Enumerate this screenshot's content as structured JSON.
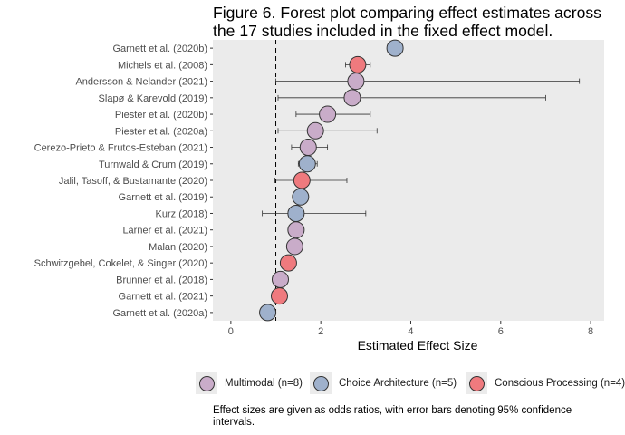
{
  "chart_data": {
    "type": "forest",
    "title": "Figure 6. Forest plot comparing effect estimates across\nthe 17 studies included in the fixed effect model.",
    "xlabel": "Estimated Effect Size",
    "xlim": [
      -0.4,
      8.3
    ],
    "x_ticks": [
      "0",
      "2",
      "4",
      "6",
      "8"
    ],
    "reference_line": 1,
    "grid": false,
    "legend_position": "bottom",
    "colors": {
      "Multimodal": "#c9acc9",
      "Choice Architecture": "#9fb1cc",
      "Conscious Processing": "#ef7a7e"
    },
    "legend": [
      {
        "group": "Multimodal",
        "label": "Multimodal (n=8)"
      },
      {
        "group": "Choice Architecture",
        "label": "Choice Architecture (n=5)"
      },
      {
        "group": "Conscious Processing",
        "label": "Conscious Processing (n=4)"
      }
    ],
    "studies": [
      {
        "name": "Garnett et al. (2020b)",
        "estimate": 3.65,
        "lower": 3.6,
        "upper": 3.7,
        "group": "Choice Architecture"
      },
      {
        "name": "Michels et al. (2008)",
        "estimate": 2.82,
        "lower": 2.55,
        "upper": 3.1,
        "group": "Conscious Processing"
      },
      {
        "name": "Andersson & Nelander (2021)",
        "estimate": 2.78,
        "lower": 1.0,
        "upper": 7.75,
        "group": "Multimodal"
      },
      {
        "name": "Slapø & Karevold (2019)",
        "estimate": 2.7,
        "lower": 1.05,
        "upper": 7.0,
        "group": "Multimodal"
      },
      {
        "name": "Piester et al. (2020b)",
        "estimate": 2.15,
        "lower": 1.45,
        "upper": 3.1,
        "group": "Multimodal"
      },
      {
        "name": "Piester et al. (2020a)",
        "estimate": 1.88,
        "lower": 1.05,
        "upper": 3.25,
        "group": "Multimodal"
      },
      {
        "name": "Cerezo-Prieto & Frutos-Esteban (2021)",
        "estimate": 1.72,
        "lower": 1.35,
        "upper": 2.15,
        "group": "Multimodal"
      },
      {
        "name": "Turnwald & Crum (2019)",
        "estimate": 1.7,
        "lower": 1.5,
        "upper": 1.92,
        "group": "Choice Architecture"
      },
      {
        "name": "Jalil, Tasoff, & Bustamante (2020)",
        "estimate": 1.58,
        "lower": 0.98,
        "upper": 2.58,
        "group": "Conscious Processing"
      },
      {
        "name": "Garnett et al. (2019)",
        "estimate": 1.55,
        "lower": 1.45,
        "upper": 1.65,
        "group": "Choice Architecture"
      },
      {
        "name": "Kurz (2018)",
        "estimate": 1.45,
        "lower": 0.7,
        "upper": 3.0,
        "group": "Choice Architecture"
      },
      {
        "name": "Larner et al. (2021)",
        "estimate": 1.45,
        "lower": 1.4,
        "upper": 1.5,
        "group": "Multimodal"
      },
      {
        "name": "Malan (2020)",
        "estimate": 1.42,
        "lower": 1.35,
        "upper": 1.5,
        "group": "Multimodal"
      },
      {
        "name": "Schwitzgebel, Cokelet, & Singer (2020)",
        "estimate": 1.28,
        "lower": 1.15,
        "upper": 1.42,
        "group": "Conscious Processing"
      },
      {
        "name": "Brunner et al. (2018)",
        "estimate": 1.1,
        "lower": 0.98,
        "upper": 1.22,
        "group": "Multimodal"
      },
      {
        "name": "Garnett et al. (2021)",
        "estimate": 1.08,
        "lower": 1.0,
        "upper": 1.15,
        "group": "Conscious Processing"
      },
      {
        "name": "Garnett et al. (2020a)",
        "estimate": 0.82,
        "lower": 0.75,
        "upper": 0.9,
        "group": "Choice Architecture"
      }
    ],
    "caption": "Effect sizes are given as odds ratios, with error bars denoting 95% confidence intervals."
  }
}
